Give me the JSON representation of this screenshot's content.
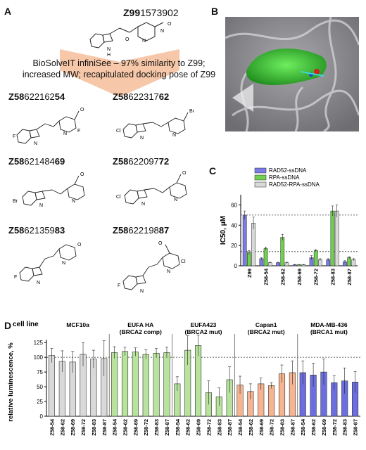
{
  "panel_a": {
    "letter": "A",
    "parent": {
      "bold": "Z99",
      "rest": "1573902"
    },
    "arrow_text": [
      "BioSolveIT infiniSee – 97% similarity to Z99;",
      "increased MW; recapitulated docking pose of Z99"
    ],
    "compounds": [
      {
        "bold": "Z58",
        "mid": "622162",
        "bold2": "54"
      },
      {
        "bold": "Z58",
        "mid": "622317",
        "bold2": "62"
      },
      {
        "bold": "Z58",
        "mid": "621484",
        "bold2": "69"
      },
      {
        "bold": "Z58",
        "mid": "622097",
        "bold2": "72"
      },
      {
        "bold": "Z58",
        "mid": "621359",
        "bold2": "83"
      },
      {
        "bold": "Z58",
        "mid": "622198",
        "bold2": "87"
      }
    ],
    "atoms": {
      "N": "N",
      "O": "O",
      "H": "H",
      "F": "F",
      "Cl": "Cl",
      "Br": "Br",
      "plus": "+",
      "minus": "−"
    }
  },
  "panel_b": {
    "letter": "B"
  },
  "panel_c": {
    "letter": "C"
  },
  "panel_d": {
    "letter": "D"
  },
  "chart_data": [
    {
      "type": "bar",
      "panel": "C",
      "ylabel": "IC50, μM",
      "ylim": [
        0,
        70
      ],
      "yticks": [
        0,
        20,
        40,
        60
      ],
      "categories": [
        "Z99",
        "Z58-54",
        "Z58-62",
        "Z58-69",
        "Z58-72",
        "Z58-83",
        "Z58-87"
      ],
      "series": [
        {
          "name": "RAD52-ssDNA",
          "color": "#7b7be6",
          "values": [
            50,
            7,
            3,
            1,
            8,
            6,
            4
          ],
          "errors": [
            4,
            1,
            0.5,
            0.3,
            2,
            1,
            1
          ]
        },
        {
          "name": "RPA-ssDNA",
          "color": "#6fd14f",
          "values": [
            13,
            17,
            28,
            1,
            15,
            54,
            8
          ],
          "errors": [
            2,
            1.5,
            3,
            0.3,
            1,
            5,
            1
          ]
        },
        {
          "name": "RAD52-RPA-ssDNA",
          "color": "#d9d9d9",
          "values": [
            42,
            3,
            3,
            1,
            6,
            54,
            6
          ],
          "errors": [
            6,
            0.5,
            0.5,
            0.3,
            1,
            6,
            1
          ]
        }
      ],
      "reference_lines": [
        50,
        14
      ],
      "legend": "top-right"
    },
    {
      "type": "bar",
      "panel": "D",
      "ylabel": "relative luminescence, %",
      "ylim": [
        0,
        130
      ],
      "yticks": [
        0,
        25,
        50,
        75,
        100,
        125
      ],
      "reference_lines": [
        100
      ],
      "row_label": "cell line",
      "categories": [
        "Z58-54",
        "Z58-62",
        "Z58-69",
        "Z58-72",
        "Z58-83",
        "Z58-87"
      ],
      "groups": [
        {
          "name": "MCF10a",
          "sub": "",
          "color": "#d9d9d9",
          "values": [
            103,
            93,
            92,
            105,
            97,
            98
          ],
          "errors": [
            12,
            18,
            18,
            20,
            15,
            30
          ]
        },
        {
          "name": "EUFA HA",
          "sub": "(BRCA2 comp)",
          "color": "#b7e39d",
          "values": [
            108,
            110,
            109,
            105,
            107,
            108
          ],
          "errors": [
            10,
            7,
            7,
            8,
            8,
            9
          ]
        },
        {
          "name": "EUFA423",
          "sub": "(BRCA2 mut)",
          "color": "#b7e39d",
          "values": [
            55,
            112,
            120,
            40,
            33,
            62
          ],
          "errors": [
            12,
            25,
            18,
            20,
            15,
            22
          ]
        },
        {
          "name": "Capan1",
          "sub": "(BRCA2 mut)",
          "color": "#f7b490",
          "values": [
            53,
            42,
            55,
            52,
            72,
            74
          ],
          "errors": [
            15,
            13,
            10,
            5,
            15,
            20
          ]
        },
        {
          "name": "MDA-MB-436",
          "sub": "(BRCA1 mut)",
          "color": "#6b6ee0",
          "values": [
            74,
            70,
            75,
            57,
            60,
            58
          ],
          "errors": [
            20,
            20,
            22,
            12,
            22,
            18
          ]
        }
      ]
    }
  ]
}
